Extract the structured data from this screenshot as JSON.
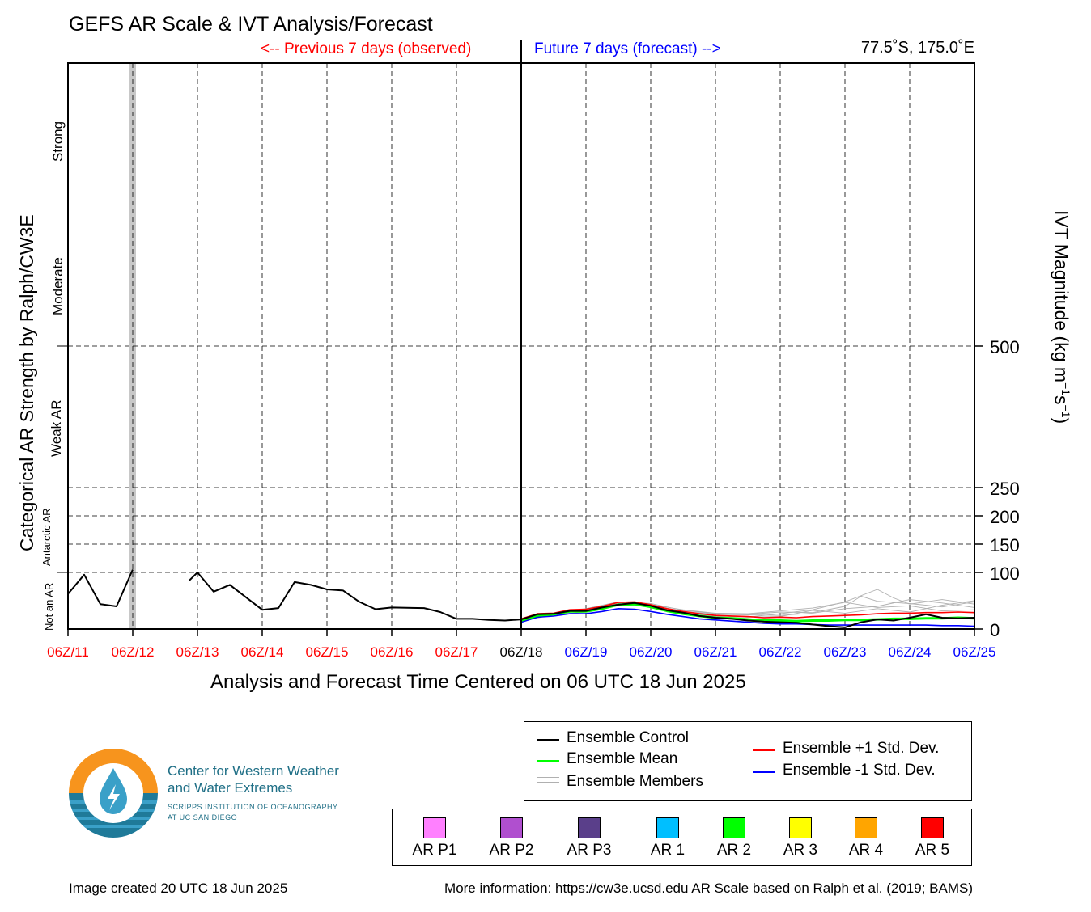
{
  "header": {
    "title": "GEFS AR Scale & IVT Analysis/Forecast",
    "previous_label": "<-- Previous 7 days (observed)",
    "future_label": "Future 7 days (forecast) -->",
    "coordinates": "77.5˚S, 175.0˚E"
  },
  "colors": {
    "observed": "#ff0000",
    "forecast": "#0000ff",
    "control": "#000000",
    "mean": "#00ff00",
    "plus_std": "#ff0000",
    "minus_std": "#0000ff",
    "members": "#b0b0b0"
  },
  "axes": {
    "left_title": "Categorical AR Strength by Ralph/CW3E",
    "right_title": "IVT Magnitude (kg m⁻¹s⁻¹)",
    "x_title": "Analysis and Forecast Time Centered on 06 UTC 18 Jun 2025",
    "categories": [
      {
        "label": "Not an AR",
        "small": true
      },
      {
        "label": "Antarctic AR",
        "small": true
      },
      {
        "label": "Weak AR",
        "small": false
      },
      {
        "label": "Moderate",
        "small": false
      },
      {
        "label": "Strong",
        "small": false
      }
    ],
    "ytick_labels": [
      "0",
      "100",
      "150",
      "200",
      "250",
      "500"
    ]
  },
  "chart_data": {
    "type": "line",
    "title": "GEFS AR Scale & IVT Analysis/Forecast",
    "xlabel": "Analysis and Forecast Time Centered on 06 UTC 18 Jun 2025",
    "ylabel": "IVT Magnitude (kg m⁻¹s⁻¹)",
    "x_tick_labels": [
      "06Z/11",
      "06Z/12",
      "06Z/13",
      "06Z/14",
      "06Z/15",
      "06Z/16",
      "06Z/17",
      "06Z/18",
      "06Z/19",
      "06Z/20",
      "06Z/21",
      "06Z/22",
      "06Z/23",
      "06Z/24",
      "06Z/25"
    ],
    "x_tick_groups": [
      "observed",
      "observed",
      "observed",
      "observed",
      "observed",
      "observed",
      "observed",
      "center",
      "forecast",
      "forecast",
      "forecast",
      "forecast",
      "forecast",
      "forecast",
      "forecast"
    ],
    "x_range_days": [
      0,
      14
    ],
    "y_ticks": [
      0,
      100,
      150,
      200,
      250,
      500
    ],
    "gridlines_y": [
      100,
      150,
      200,
      250,
      500
    ],
    "grid": true,
    "shaded_day": 1,
    "ar_category_boundaries": [
      100,
      500
    ],
    "series": [
      {
        "name": "Ensemble Control",
        "key": "control",
        "segments": [
          [
            [
              0,
              62
            ],
            [
              0.25,
              96
            ],
            [
              0.5,
              44
            ],
            [
              0.75,
              40
            ],
            [
              1.0,
              105
            ]
          ],
          [
            [
              1.875,
              86
            ],
            [
              2.0,
              100
            ],
            [
              2.25,
              66
            ],
            [
              2.5,
              78
            ],
            [
              3.0,
              34
            ],
            [
              3.25,
              37
            ],
            [
              3.5,
              83
            ],
            [
              3.75,
              78
            ],
            [
              4.0,
              70
            ],
            [
              4.25,
              68
            ],
            [
              4.5,
              48
            ],
            [
              4.75,
              35
            ],
            [
              5.0,
              38
            ],
            [
              5.5,
              37
            ],
            [
              5.75,
              30
            ],
            [
              6.0,
              18
            ],
            [
              6.25,
              18
            ],
            [
              6.5,
              16
            ],
            [
              6.75,
              15
            ],
            [
              7.0,
              17
            ],
            [
              7.25,
              26
            ],
            [
              7.5,
              27
            ],
            [
              7.75,
              32
            ],
            [
              8.0,
              32
            ],
            [
              8.25,
              38
            ],
            [
              8.5,
              43
            ],
            [
              8.75,
              46
            ],
            [
              9.0,
              41
            ],
            [
              9.25,
              33
            ],
            [
              9.5,
              29
            ],
            [
              9.75,
              23
            ],
            [
              10.0,
              20
            ],
            [
              10.25,
              18
            ],
            [
              10.5,
              15
            ],
            [
              10.75,
              13
            ],
            [
              11.0,
              12
            ],
            [
              11.25,
              11
            ],
            [
              11.5,
              8
            ],
            [
              11.75,
              5
            ],
            [
              12.0,
              3
            ],
            [
              12.25,
              12
            ],
            [
              12.5,
              17
            ],
            [
              12.75,
              15
            ],
            [
              13.0,
              20
            ],
            [
              13.25,
              26
            ],
            [
              13.5,
              20
            ],
            [
              13.75,
              19
            ],
            [
              14.0,
              20
            ]
          ]
        ]
      },
      {
        "name": "Ensemble Mean",
        "key": "mean",
        "segments": [
          [
            [
              7.0,
              15
            ],
            [
              7.25,
              24
            ],
            [
              7.5,
              26
            ],
            [
              7.75,
              31
            ],
            [
              8.0,
              31
            ],
            [
              8.25,
              36
            ],
            [
              8.5,
              43
            ],
            [
              8.75,
              44
            ],
            [
              9.0,
              39
            ],
            [
              9.25,
              32
            ],
            [
              9.5,
              27
            ],
            [
              9.75,
              23
            ],
            [
              10.0,
              20
            ],
            [
              10.25,
              19
            ],
            [
              10.5,
              17
            ],
            [
              10.75,
              15
            ],
            [
              11.0,
              15
            ],
            [
              11.25,
              14
            ],
            [
              11.5,
              15
            ],
            [
              11.75,
              15
            ],
            [
              12.0,
              16
            ],
            [
              12.25,
              16
            ],
            [
              12.5,
              17
            ],
            [
              12.75,
              18
            ],
            [
              13.0,
              18
            ],
            [
              13.25,
              19
            ],
            [
              13.5,
              19
            ],
            [
              13.75,
              20
            ],
            [
              14.0,
              19
            ]
          ]
        ]
      },
      {
        "name": "Ensemble +1 Std. Dev.",
        "key": "plus",
        "segments": [
          [
            [
              7.0,
              18
            ],
            [
              7.25,
              27
            ],
            [
              7.5,
              28
            ],
            [
              7.75,
              34
            ],
            [
              8.0,
              35
            ],
            [
              8.25,
              40
            ],
            [
              8.5,
              47
            ],
            [
              8.75,
              48
            ],
            [
              9.0,
              43
            ],
            [
              9.25,
              36
            ],
            [
              9.5,
              31
            ],
            [
              9.75,
              27
            ],
            [
              10.0,
              24
            ],
            [
              10.25,
              23
            ],
            [
              10.5,
              22
            ],
            [
              10.75,
              20
            ],
            [
              11.0,
              21
            ],
            [
              11.25,
              20
            ],
            [
              11.5,
              22
            ],
            [
              11.75,
              23
            ],
            [
              12.0,
              24
            ],
            [
              12.25,
              25
            ],
            [
              12.5,
              27
            ],
            [
              12.75,
              28
            ],
            [
              13.0,
              28
            ],
            [
              13.25,
              29
            ],
            [
              13.5,
              29
            ],
            [
              13.75,
              30
            ],
            [
              14.0,
              29
            ]
          ]
        ]
      },
      {
        "name": "Ensemble -1 Std. Dev.",
        "key": "minus",
        "segments": [
          [
            [
              7.0,
              12
            ],
            [
              7.25,
              21
            ],
            [
              7.5,
              23
            ],
            [
              7.75,
              27
            ],
            [
              8.0,
              27
            ],
            [
              8.25,
              31
            ],
            [
              8.5,
              36
            ],
            [
              8.75,
              35
            ],
            [
              9.0,
              31
            ],
            [
              9.25,
              26
            ],
            [
              9.5,
              22
            ],
            [
              9.75,
              18
            ],
            [
              10.0,
              16
            ],
            [
              10.25,
              14
            ],
            [
              10.5,
              12
            ],
            [
              10.75,
              10
            ],
            [
              11.0,
              9
            ],
            [
              11.25,
              9
            ],
            [
              11.5,
              8
            ],
            [
              11.75,
              7
            ],
            [
              12.0,
              7
            ],
            [
              12.25,
              7
            ],
            [
              12.5,
              7
            ],
            [
              12.75,
              7
            ],
            [
              13.0,
              7
            ],
            [
              13.25,
              7
            ],
            [
              13.5,
              6
            ],
            [
              13.75,
              6
            ],
            [
              14.0,
              5
            ]
          ]
        ]
      },
      {
        "name": "Ensemble Members",
        "key": "member",
        "segments": [
          [
            [
              7.0,
              16
            ],
            [
              7.5,
              28
            ],
            [
              8.0,
              36
            ],
            [
              8.5,
              48
            ],
            [
              9.0,
              45
            ],
            [
              9.5,
              33
            ],
            [
              10.0,
              27
            ],
            [
              10.5,
              26
            ],
            [
              11.0,
              30
            ],
            [
              11.5,
              29
            ],
            [
              12.0,
              40
            ],
            [
              12.25,
              58
            ],
            [
              12.5,
              49
            ],
            [
              13.0,
              45
            ],
            [
              13.5,
              39
            ],
            [
              14.0,
              48
            ]
          ],
          [
            [
              7.0,
              14
            ],
            [
              7.5,
              25
            ],
            [
              8.0,
              30
            ],
            [
              8.5,
              42
            ],
            [
              9.0,
              40
            ],
            [
              9.5,
              30
            ],
            [
              10.0,
              24
            ],
            [
              10.5,
              21
            ],
            [
              11.0,
              27
            ],
            [
              11.5,
              34
            ],
            [
              12.0,
              48
            ],
            [
              12.5,
              70
            ],
            [
              12.75,
              55
            ],
            [
              13.0,
              44
            ],
            [
              13.5,
              52
            ],
            [
              14.0,
              44
            ]
          ],
          [
            [
              7.0,
              17
            ],
            [
              7.5,
              27
            ],
            [
              8.0,
              33
            ],
            [
              8.5,
              47
            ],
            [
              9.0,
              42
            ],
            [
              9.5,
              31
            ],
            [
              10.0,
              26
            ],
            [
              10.5,
              25
            ],
            [
              11.0,
              24
            ],
            [
              11.5,
              28
            ],
            [
              12.0,
              36
            ],
            [
              12.5,
              40
            ],
            [
              13.0,
              52
            ],
            [
              13.5,
              46
            ],
            [
              14.0,
              38
            ]
          ],
          [
            [
              7.0,
              15
            ],
            [
              7.5,
              26
            ],
            [
              8.0,
              34
            ],
            [
              8.5,
              45
            ],
            [
              9.0,
              39
            ],
            [
              9.5,
              29
            ],
            [
              10.0,
              23
            ],
            [
              10.5,
              21
            ],
            [
              11.0,
              22
            ],
            [
              11.5,
              33
            ],
            [
              12.0,
              28
            ],
            [
              12.5,
              36
            ],
            [
              13.0,
              30
            ],
            [
              13.5,
              42
            ],
            [
              14.0,
              50
            ]
          ],
          [
            [
              7.0,
              16
            ],
            [
              7.5,
              27
            ],
            [
              8.0,
              32
            ],
            [
              8.5,
              44
            ],
            [
              9.0,
              43
            ],
            [
              9.5,
              34
            ],
            [
              10.0,
              28
            ],
            [
              10.5,
              27
            ],
            [
              11.0,
              32
            ],
            [
              11.5,
              37
            ],
            [
              12.0,
              47
            ],
            [
              12.5,
              38
            ],
            [
              13.0,
              41
            ],
            [
              13.5,
              32
            ],
            [
              14.0,
              34
            ]
          ]
        ]
      }
    ],
    "legend": {
      "placement": "bottom-right",
      "items": [
        {
          "key": "control",
          "label": "Ensemble Control"
        },
        {
          "key": "mean",
          "label": "Ensemble Mean"
        },
        {
          "key": "member",
          "label": "Ensemble Members"
        },
        {
          "key": "plus",
          "label": "Ensemble +1 Std. Dev."
        },
        {
          "key": "minus",
          "label": "Ensemble -1 Std. Dev."
        }
      ]
    }
  },
  "ar_scale_legend": [
    {
      "label": "AR P1",
      "color": "#ff80ff"
    },
    {
      "label": "AR P2",
      "color": "#b04fcf"
    },
    {
      "label": "AR P3",
      "color": "#5a3f8a"
    },
    {
      "label": "AR 1",
      "color": "#00bfff"
    },
    {
      "label": "AR 2",
      "color": "#00ff00"
    },
    {
      "label": "AR 3",
      "color": "#ffff00"
    },
    {
      "label": "AR 4",
      "color": "#ffa500"
    },
    {
      "label": "AR 5",
      "color": "#ff0000"
    }
  ],
  "logo": {
    "line1": "Center for Western Weather",
    "line2": "and Water Extremes",
    "line3": "SCRIPPS INSTITUTION OF OCEANOGRAPHY",
    "line4": "AT UC SAN DIEGO",
    "orange": "#f7941d",
    "blue": "#1f7a99",
    "light_blue": "#3aa0c8"
  },
  "footer": {
    "created": "Image created 20 UTC 18 Jun 2025",
    "more_info": "More information: https://cw3e.ucsd.edu AR Scale based on Ralph et al. (2019; BAMS)"
  }
}
